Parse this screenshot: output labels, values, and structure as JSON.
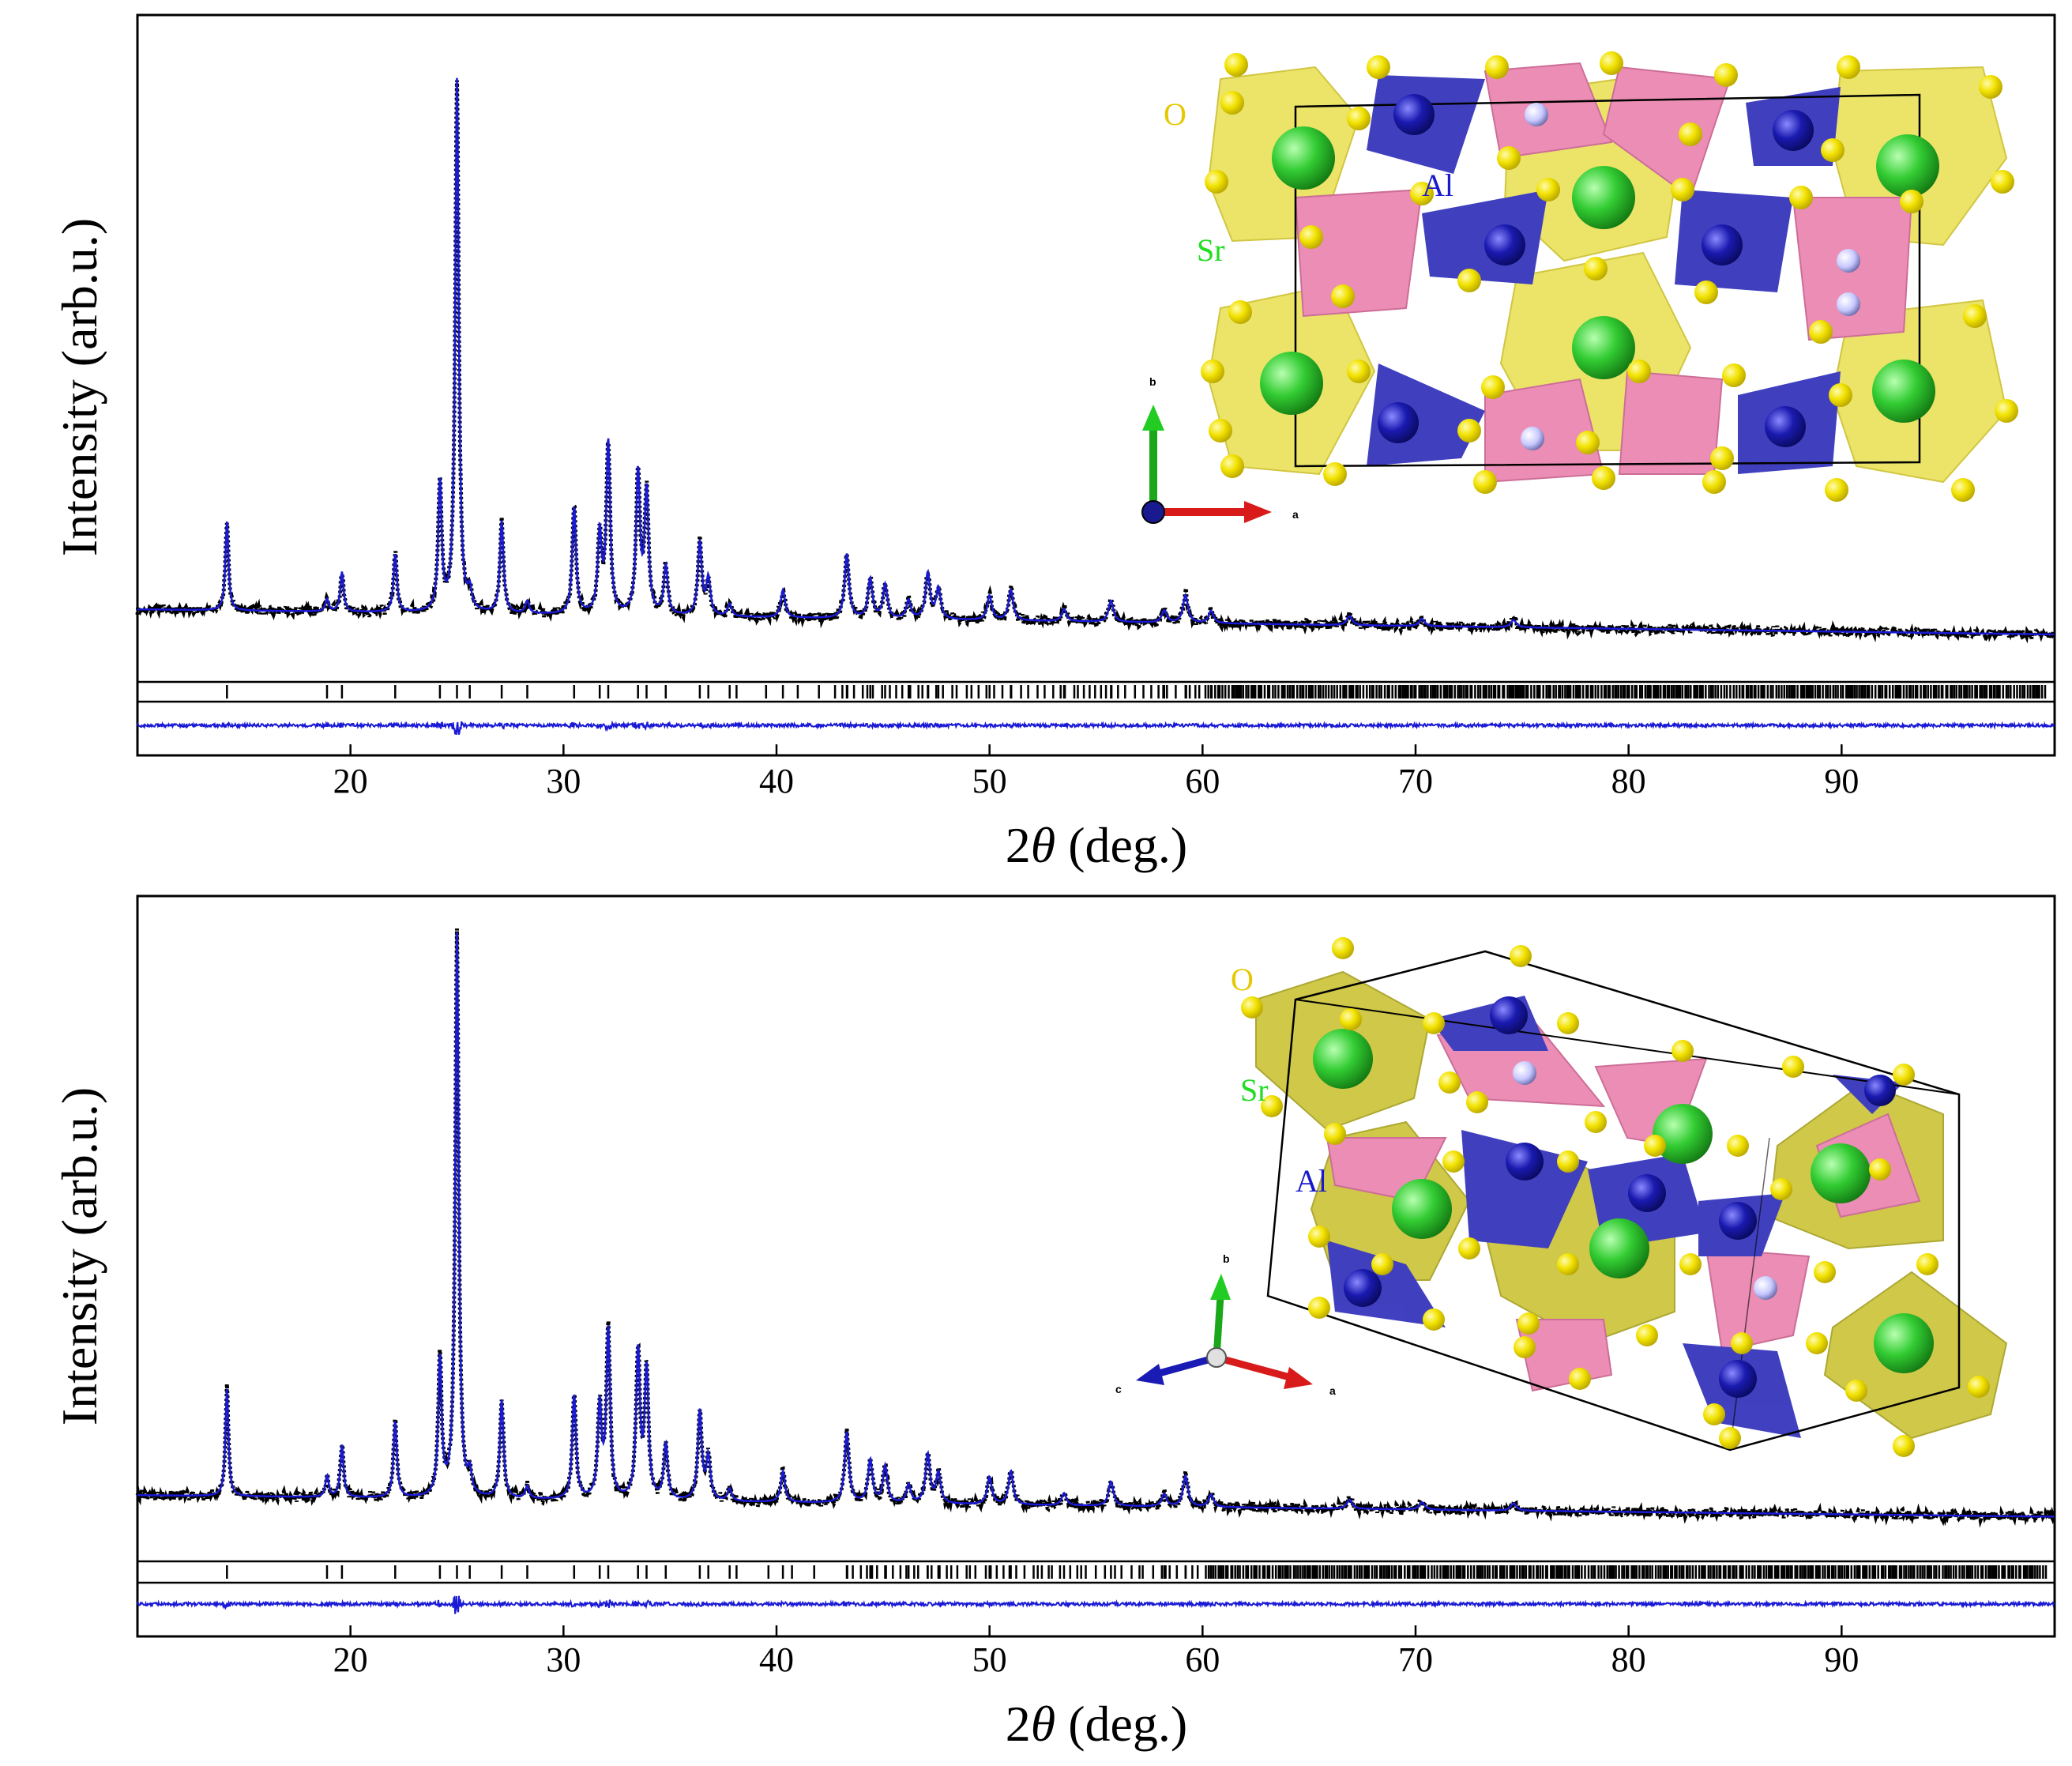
{
  "colors": {
    "observed": "#000000",
    "calculated": "#1a1ad6",
    "difference": "#1a1ad6",
    "bragg": "#000000",
    "oxygen": "#e8d400",
    "aluminium": "#1f1fb5",
    "strontium": "#2ecc2e",
    "strontium_label": "#22dd22",
    "oxygen_label": "#e6c800",
    "aluminium_label": "#1a1acc",
    "pink_tetra": "#e87aa8",
    "yellow_poly": "#e8e050"
  },
  "chart_data": [
    {
      "type": "line",
      "series": [
        {
          "name": "observed",
          "style": "open circles"
        },
        {
          "name": "calculated",
          "style": "blue line"
        },
        {
          "name": "difference",
          "style": "blue line"
        },
        {
          "name": "Bragg positions",
          "style": "black ticks"
        }
      ],
      "xlabel_prefix": "2",
      "xlabel_symbol": "θ",
      "xlabel_suffix": " (deg.)",
      "ylabel": "Intensity (arb.u.)",
      "xlim": [
        10,
        100
      ],
      "xticks": [
        20,
        30,
        40,
        50,
        60,
        70,
        80,
        90
      ],
      "baseline_start": 0.063,
      "baseline_end": 0.022,
      "peaks": [
        [
          14.2,
          0.145
        ],
        [
          18.9,
          0.02
        ],
        [
          19.6,
          0.065
        ],
        [
          22.1,
          0.095
        ],
        [
          24.2,
          0.21
        ],
        [
          25.0,
          0.87
        ],
        [
          25.6,
          0.03
        ],
        [
          27.1,
          0.15
        ],
        [
          28.3,
          0.02
        ],
        [
          30.5,
          0.175
        ],
        [
          31.7,
          0.13
        ],
        [
          32.1,
          0.28
        ],
        [
          33.5,
          0.23
        ],
        [
          33.9,
          0.2
        ],
        [
          34.8,
          0.08
        ],
        [
          36.4,
          0.12
        ],
        [
          36.8,
          0.06
        ],
        [
          37.8,
          0.02
        ],
        [
          40.3,
          0.045
        ],
        [
          43.3,
          0.105
        ],
        [
          44.4,
          0.065
        ],
        [
          45.1,
          0.055
        ],
        [
          46.2,
          0.03
        ],
        [
          47.1,
          0.075
        ],
        [
          47.6,
          0.05
        ],
        [
          50.0,
          0.04
        ],
        [
          51.0,
          0.05
        ],
        [
          53.5,
          0.02
        ],
        [
          55.7,
          0.035
        ],
        [
          58.2,
          0.02
        ],
        [
          59.2,
          0.045
        ],
        [
          60.4,
          0.02
        ],
        [
          66.9,
          0.015
        ],
        [
          70.3,
          0.012
        ],
        [
          74.6,
          0.012
        ]
      ],
      "inset_atom_labels": [
        "O",
        "Al",
        "Sr"
      ],
      "inset_axes": [
        "b",
        "a"
      ]
    },
    {
      "type": "line",
      "series": [
        {
          "name": "observed",
          "style": "open circles"
        },
        {
          "name": "calculated",
          "style": "blue line"
        },
        {
          "name": "difference",
          "style": "blue line"
        },
        {
          "name": "Bragg positions",
          "style": "black ticks"
        }
      ],
      "xlabel_prefix": "2",
      "xlabel_symbol": "θ",
      "xlabel_suffix": " (deg.)",
      "ylabel": "Intensity (arb.u.)",
      "xlim": [
        10,
        100
      ],
      "xticks": [
        20,
        30,
        40,
        50,
        60,
        70,
        80,
        90
      ],
      "baseline_start": 0.055,
      "baseline_end": 0.02,
      "peaks": [
        [
          14.2,
          0.175
        ],
        [
          18.9,
          0.035
        ],
        [
          19.6,
          0.085
        ],
        [
          22.1,
          0.125
        ],
        [
          24.2,
          0.225
        ],
        [
          25.0,
          0.92
        ],
        [
          25.6,
          0.035
        ],
        [
          27.1,
          0.16
        ],
        [
          28.3,
          0.02
        ],
        [
          30.5,
          0.17
        ],
        [
          31.7,
          0.15
        ],
        [
          32.1,
          0.275
        ],
        [
          33.5,
          0.24
        ],
        [
          33.9,
          0.21
        ],
        [
          34.8,
          0.09
        ],
        [
          36.4,
          0.145
        ],
        [
          36.8,
          0.07
        ],
        [
          37.8,
          0.02
        ],
        [
          40.3,
          0.05
        ],
        [
          43.3,
          0.115
        ],
        [
          44.4,
          0.07
        ],
        [
          45.1,
          0.06
        ],
        [
          46.2,
          0.03
        ],
        [
          47.1,
          0.08
        ],
        [
          47.6,
          0.05
        ],
        [
          50.0,
          0.045
        ],
        [
          51.0,
          0.055
        ],
        [
          53.5,
          0.02
        ],
        [
          55.7,
          0.04
        ],
        [
          58.2,
          0.02
        ],
        [
          59.2,
          0.05
        ],
        [
          60.4,
          0.02
        ],
        [
          66.9,
          0.015
        ],
        [
          70.3,
          0.012
        ],
        [
          74.6,
          0.012
        ]
      ],
      "inset_atom_labels": [
        "O",
        "Sr",
        "Al"
      ],
      "inset_axes": [
        "b",
        "c",
        "a"
      ]
    }
  ]
}
